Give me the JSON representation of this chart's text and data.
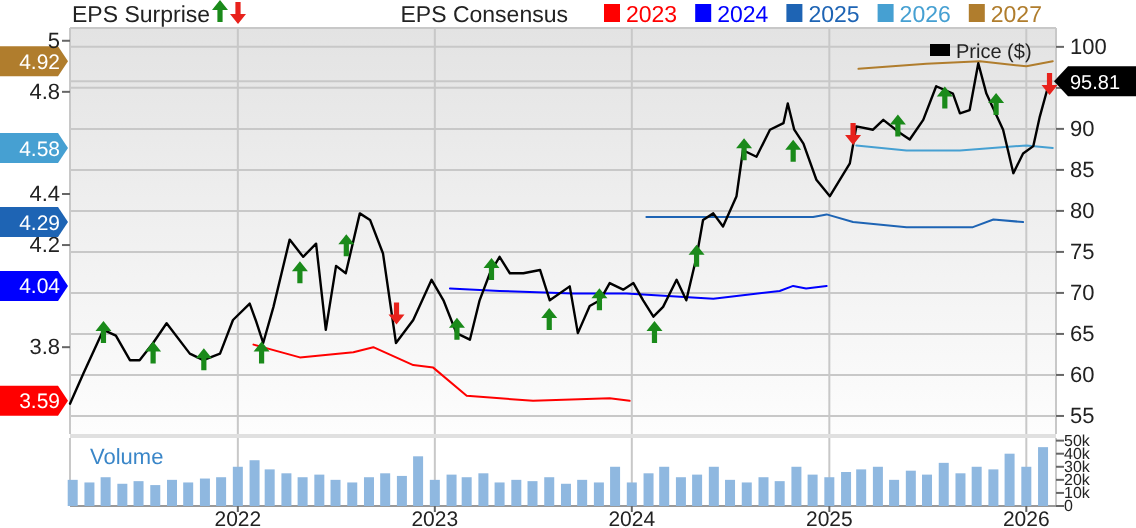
{
  "chart_data": [
    {
      "type": "line",
      "annotations": [
        "EPS Surprise",
        "EPS Consensus"
      ],
      "xlim": [
        "2021-02-24",
        "2026-02-25"
      ],
      "xticks": [
        "2022",
        "2023",
        "2024",
        "2025",
        "2026"
      ],
      "tick_labels": "y",
      "ylim": [
        3.46,
        5.05
      ],
      "yticks": [
        3.59,
        3.8,
        4.04,
        4.2,
        4.29,
        4.4,
        4.58,
        4.8,
        4.92,
        5
      ],
      "y2lim": [
        52.8,
        102.3
      ],
      "y2ticks": [
        55,
        60,
        65,
        70,
        75,
        80,
        85,
        90,
        {
          "value": 95,
          "label": null
        },
        95.81,
        100
      ],
      "grid": true,
      "legend": "top right",
      "series": [
        {
          "name": "2023",
          "axis": "y",
          "color": "#ff0000",
          "x": [
            "2022-01-30",
            "2022-04-26",
            "2022-08-03",
            "2022-09-09",
            "2022-11-22",
            "2022-12-29",
            "2023-03-01",
            "2023-07-02",
            "2023-11-21",
            "2023-12-28"
          ],
          "values": [
            3.81,
            3.76,
            3.78,
            3.8,
            3.73,
            3.72,
            3.61,
            3.59,
            3.6,
            3.59
          ]
        },
        {
          "name": "2024",
          "axis": "y",
          "color": "#0000ff",
          "x": [
            "2023-01-29",
            "2023-05-01",
            "2023-09-14",
            "2023-12-22",
            "2024-05-31",
            "2024-10-01",
            "2024-10-26",
            "2024-11-19",
            "2024-12-27"
          ],
          "values": [
            4.03,
            4.02,
            4.01,
            4.01,
            3.99,
            4.02,
            4.04,
            4.03,
            4.04
          ]
        },
        {
          "name": "2025",
          "axis": "y",
          "color": "#1e64b4",
          "x": [
            "2024-01-28",
            "2024-12-02",
            "2024-12-27",
            "2025-02-14",
            "2025-05-24",
            "2025-09-24",
            "2025-11-01",
            "2025-12-26"
          ],
          "values": [
            4.31,
            4.31,
            4.32,
            4.29,
            4.27,
            4.27,
            4.3,
            4.29
          ]
        },
        {
          "name": "2026",
          "axis": "y",
          "color": "#46a0d2",
          "x": [
            "2025-02-20",
            "2025-05-24",
            "2025-08-31",
            "2026-01-01",
            "2026-02-19"
          ],
          "values": [
            4.59,
            4.57,
            4.57,
            4.59,
            4.58
          ]
        },
        {
          "name": "2027",
          "axis": "y",
          "color": "#b07d2d",
          "x": [
            "2025-02-24",
            "2025-06-30",
            "2025-10-07",
            "2026-01-01",
            "2026-02-19"
          ],
          "values": [
            4.89,
            4.91,
            4.92,
            4.9,
            4.92
          ]
        },
        {
          "name": "Price ($)",
          "axis": "y2",
          "color": "#000000",
          "x": [
            "2021-02-24",
            "2021-03-21",
            "2021-04-27",
            "2021-05-20",
            "2021-06-15",
            "2021-07-03",
            "2021-07-28",
            "2021-08-22",
            "2021-10-04",
            "2021-10-29",
            "2021-11-29",
            "2021-12-23",
            "2022-01-23",
            "2022-02-03",
            "2022-02-17",
            "2022-03-08",
            "2022-04-07",
            "2022-05-02",
            "2022-05-26",
            "2022-06-13",
            "2022-07-02",
            "2022-07-20",
            "2022-08-15",
            "2022-09-03",
            "2022-09-27",
            "2022-10-21",
            "2022-11-22",
            "2022-12-26",
            "2023-01-17",
            "2023-02-10",
            "2023-03-07",
            "2023-03-25",
            "2023-04-13",
            "2023-05-01",
            "2023-05-20",
            "2023-06-14",
            "2023-07-15",
            "2023-08-02",
            "2023-09-08",
            "2023-09-23",
            "2023-10-15",
            "2023-11-03",
            "2023-11-21",
            "2023-12-16",
            "2024-01-04",
            "2024-01-22",
            "2024-02-10",
            "2024-02-28",
            "2024-03-24",
            "2024-04-11",
            "2024-04-30",
            "2024-05-12",
            "2024-05-31",
            "2024-06-18",
            "2024-07-13",
            "2024-07-25",
            "2024-08-19",
            "2024-09-13",
            "2024-10-08",
            "2024-10-16",
            "2024-10-28",
            "2024-11-14",
            "2024-12-08",
            "2025-01-02",
            "2025-02-08",
            "2025-02-20",
            "2025-03-23",
            "2025-04-11",
            "2025-05-12",
            "2025-05-30",
            "2025-06-24",
            "2025-07-18",
            "2025-08-18",
            "2025-08-31",
            "2025-09-18",
            "2025-10-04",
            "2025-10-19",
            "2025-11-19",
            "2025-12-08",
            "2025-12-26",
            "2026-01-14",
            "2026-01-26",
            "2026-02-13"
          ],
          "values": [
            56.5,
            60.2,
            65.5,
            64.8,
            61.8,
            61.8,
            63.9,
            66.3,
            62.6,
            61.8,
            62.6,
            66.7,
            68.7,
            66.7,
            63.9,
            68.3,
            76.5,
            74.4,
            76,
            65.5,
            73.3,
            72.4,
            79.7,
            78.9,
            74.8,
            63.9,
            66.7,
            71.6,
            69.1,
            65.1,
            64.3,
            69.1,
            72.4,
            74.4,
            72.4,
            72.4,
            72.8,
            69.1,
            70.8,
            65.1,
            68.4,
            69.1,
            71.2,
            70.4,
            71.2,
            69.1,
            67.1,
            68.3,
            71.6,
            69.1,
            74.4,
            78.9,
            79.7,
            78.1,
            81.8,
            87.4,
            86.6,
            89.9,
            90.7,
            93.1,
            89.9,
            88.2,
            83.8,
            81.8,
            85.8,
            90.3,
            89.9,
            91.1,
            89.5,
            88.7,
            91.1,
            95.2,
            94.3,
            91.9,
            92.3,
            98,
            94.3,
            89.9,
            84.6,
            87,
            87.9,
            91.5,
            95.81
          ]
        },
        {
          "type": "scatter",
          "axis": "y2",
          "marker": "triangle",
          "color": "#1a8a1a",
          "x": [
            "2021-04-27",
            "2021-07-28",
            "2021-10-30",
            "2022-02-14",
            "2022-04-26",
            "2022-07-21",
            "2023-02-11",
            "2023-04-16",
            "2023-08-01",
            "2023-11-02",
            "2024-02-12",
            "2024-04-30",
            "2024-07-27",
            "2024-10-26",
            "2025-05-08",
            "2025-08-03",
            "2025-11-06"
          ],
          "values": [
            65.1,
            62.6,
            61.8,
            62.6,
            72.4,
            75.7,
            65.5,
            72.8,
            66.7,
            69.1,
            65.1,
            74.4,
            87.4,
            87.2,
            90.3,
            93.7,
            92.9
          ]
        },
        {
          "type": "scatter",
          "axis": "y2",
          "marker": "triangle",
          "color": "#e8221c",
          "x": [
            "2022-10-22",
            "2025-02-14",
            "2026-02-13"
          ],
          "values": [
            67.6,
            89.5,
            95.6
          ]
        }
      ]
    },
    {
      "type": "bar",
      "annotations": [
        "Volume"
      ],
      "xlim": [
        "2021-02-24",
        "2026-02-25"
      ],
      "xticks": [
        "2022",
        "2023",
        "2024",
        "2025",
        "2026"
      ],
      "ylim": [
        0,
        52000
      ],
      "yticks": [
        {
          "value": 0,
          "label": "0"
        },
        {
          "value": 10000,
          "label": "10k"
        },
        {
          "value": 20000,
          "label": "20k"
        },
        {
          "value": 30000,
          "label": "30k"
        },
        {
          "value": 40000,
          "label": "40k"
        },
        {
          "value": 50000,
          "label": "50k"
        }
      ],
      "grid": "x",
      "color": "#8fb8e0",
      "x": [
        "2021-03",
        "2021-04",
        "2021-05",
        "2021-06",
        "2021-07",
        "2021-08",
        "2021-09",
        "2021-10",
        "2021-11",
        "2021-12",
        "2022-01",
        "2022-02",
        "2022-03",
        "2022-04",
        "2022-05",
        "2022-06",
        "2022-07",
        "2022-08",
        "2022-09",
        "2022-10",
        "2022-11",
        "2022-12",
        "2023-01",
        "2023-02",
        "2023-03",
        "2023-04",
        "2023-05",
        "2023-06",
        "2023-07",
        "2023-08",
        "2023-09",
        "2023-10",
        "2023-11",
        "2023-12",
        "2024-01",
        "2024-02",
        "2024-03",
        "2024-04",
        "2024-05",
        "2024-06",
        "2024-07",
        "2024-08",
        "2024-09",
        "2024-10",
        "2024-11",
        "2024-12",
        "2025-01",
        "2025-02",
        "2025-03",
        "2025-04",
        "2025-05",
        "2025-06",
        "2025-07",
        "2025-08",
        "2025-09",
        "2025-10",
        "2025-11",
        "2025-12",
        "2026-01",
        "2026-02"
      ],
      "values": [
        20000,
        18000,
        22000,
        17000,
        19000,
        16000,
        20000,
        18000,
        21000,
        22000,
        30000,
        35000,
        28000,
        25000,
        22000,
        24000,
        20000,
        18000,
        22000,
        25000,
        23000,
        38000,
        20000,
        24000,
        22000,
        25000,
        18000,
        20000,
        19000,
        22000,
        17000,
        20000,
        18000,
        30000,
        18000,
        25000,
        30000,
        22000,
        24000,
        30000,
        20000,
        18000,
        22000,
        19000,
        30000,
        24000,
        22000,
        26000,
        28000,
        30000,
        20000,
        27000,
        24000,
        33000,
        25000,
        30000,
        28000,
        40000,
        30000,
        45000
      ]
    }
  ]
}
